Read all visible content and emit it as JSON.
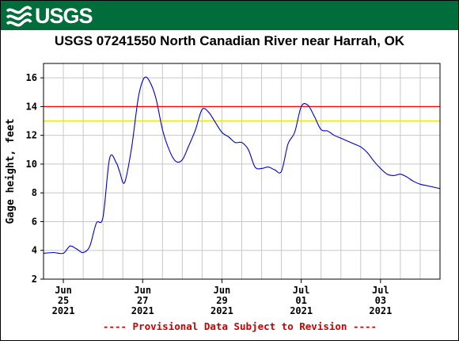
{
  "header": {
    "logo_text": "USGS",
    "logo_icon": "usgs-wave-icon",
    "banner_color": "#006d3a"
  },
  "chart_data": {
    "type": "line",
    "title": "USGS 07241550 North Canadian River near Harrah, OK",
    "ylabel": "Gage height, feet",
    "xlabel": "",
    "ylim": [
      2,
      17
    ],
    "y_ticks": [
      2,
      4,
      6,
      8,
      10,
      12,
      14,
      16
    ],
    "xlim": [
      "2021-06-24T12:00",
      "2021-07-04T12:00"
    ],
    "x_ticks": [
      {
        "at": "2021-06-25T00:00",
        "month": "Jun",
        "day": "25",
        "year": "2021"
      },
      {
        "at": "2021-06-27T00:00",
        "month": "Jun",
        "day": "27",
        "year": "2021"
      },
      {
        "at": "2021-06-29T00:00",
        "month": "Jun",
        "day": "29",
        "year": "2021"
      },
      {
        "at": "2021-07-01T00:00",
        "month": "Jul",
        "day": "01",
        "year": "2021"
      },
      {
        "at": "2021-07-03T00:00",
        "month": "Jul",
        "day": "03",
        "year": "2021"
      }
    ],
    "grid": true,
    "thresholds": [
      {
        "value": 14,
        "color": "#ff0000"
      },
      {
        "value": 13,
        "color": "#e6e600"
      }
    ],
    "series": [
      {
        "color": "#0000cc",
        "x": [
          "2021-06-24T12:00",
          "2021-06-24T18:00",
          "2021-06-25T00:00",
          "2021-06-25T04:00",
          "2021-06-25T08:00",
          "2021-06-25T12:00",
          "2021-06-25T16:00",
          "2021-06-25T20:00",
          "2021-06-26T00:00",
          "2021-06-26T04:00",
          "2021-06-26T08:00",
          "2021-06-26T10:00",
          "2021-06-26T13:00",
          "2021-06-26T17:00",
          "2021-06-26T20:00",
          "2021-06-26T22:00",
          "2021-06-27T01:00",
          "2021-06-27T04:00",
          "2021-06-27T08:00",
          "2021-06-27T12:00",
          "2021-06-27T16:00",
          "2021-06-27T20:00",
          "2021-06-28T00:00",
          "2021-06-28T04:00",
          "2021-06-28T08:00",
          "2021-06-28T12:00",
          "2021-06-28T16:00",
          "2021-06-28T20:00",
          "2021-06-29T00:00",
          "2021-06-29T04:00",
          "2021-06-29T08:00",
          "2021-06-29T12:00",
          "2021-06-29T16:00",
          "2021-06-29T20:00",
          "2021-06-30T00:00",
          "2021-06-30T04:00",
          "2021-06-30T08:00",
          "2021-06-30T12:00",
          "2021-06-30T16:00",
          "2021-06-30T20:00",
          "2021-07-01T00:00",
          "2021-07-01T04:00",
          "2021-07-01T08:00",
          "2021-07-01T12:00",
          "2021-07-01T16:00",
          "2021-07-01T20:00",
          "2021-07-02T00:00",
          "2021-07-02T04:00",
          "2021-07-02T08:00",
          "2021-07-02T12:00",
          "2021-07-02T16:00",
          "2021-07-02T20:00",
          "2021-07-03T00:00",
          "2021-07-03T04:00",
          "2021-07-03T08:00",
          "2021-07-03T12:00",
          "2021-07-03T16:00",
          "2021-07-03T20:00",
          "2021-07-04T00:00",
          "2021-07-04T04:00",
          "2021-07-04T08:00",
          "2021-07-04T12:00"
        ],
        "y": [
          3.8,
          3.85,
          3.8,
          4.3,
          4.1,
          3.85,
          4.3,
          5.9,
          6.3,
          10.4,
          10.1,
          9.5,
          8.7,
          10.9,
          13.5,
          15.0,
          16.0,
          15.8,
          14.6,
          12.4,
          11.0,
          10.2,
          10.3,
          11.3,
          12.4,
          13.8,
          13.6,
          12.9,
          12.2,
          11.9,
          11.5,
          11.5,
          11.0,
          9.8,
          9.7,
          9.8,
          9.6,
          9.5,
          11.4,
          12.2,
          14.0,
          14.1,
          13.3,
          12.4,
          12.3,
          12.0,
          11.8,
          11.6,
          11.4,
          11.2,
          10.8,
          10.2,
          9.7,
          9.3,
          9.2,
          9.3,
          9.1,
          8.8,
          8.6,
          8.5,
          8.4,
          8.3
        ]
      }
    ],
    "footer_note": "---- Provisional Data Subject to Revision ----"
  }
}
